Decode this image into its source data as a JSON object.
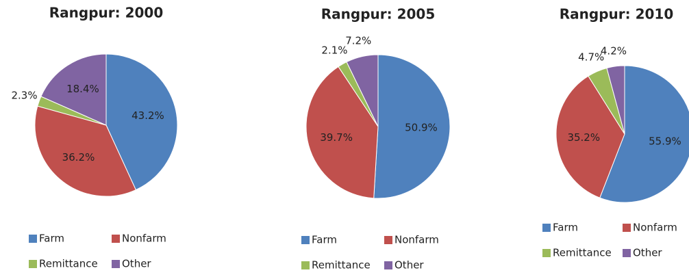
{
  "chart_data": [
    {
      "type": "pie",
      "title": "Rangpur: 2000",
      "categories": [
        "Farm",
        "Nonfarm",
        "Remittance",
        "Other"
      ],
      "values": [
        43.2,
        36.2,
        2.3,
        18.4
      ],
      "value_labels": [
        "43.2%",
        "36.2%",
        "2.3%",
        "18.4%"
      ],
      "colors": [
        "#4f81bd",
        "#c0504d",
        "#9bbb59",
        "#8064a2"
      ]
    },
    {
      "type": "pie",
      "title": "Rangpur: 2005",
      "categories": [
        "Farm",
        "Nonfarm",
        "Remittance",
        "Other"
      ],
      "values": [
        50.9,
        39.7,
        2.1,
        7.2
      ],
      "value_labels": [
        "50.9%",
        "39.7%",
        "2.1%",
        "7.2%"
      ],
      "colors": [
        "#4f81bd",
        "#c0504d",
        "#9bbb59",
        "#8064a2"
      ]
    },
    {
      "type": "pie",
      "title": "Rangpur: 2010",
      "categories": [
        "Farm",
        "Nonfarm",
        "Remittance",
        "Other"
      ],
      "values": [
        55.9,
        35.2,
        4.7,
        4.2
      ],
      "value_labels": [
        "55.9%",
        "35.2%",
        "4.7%",
        "4.2%"
      ],
      "colors": [
        "#4f81bd",
        "#c0504d",
        "#9bbb59",
        "#8064a2"
      ]
    }
  ]
}
